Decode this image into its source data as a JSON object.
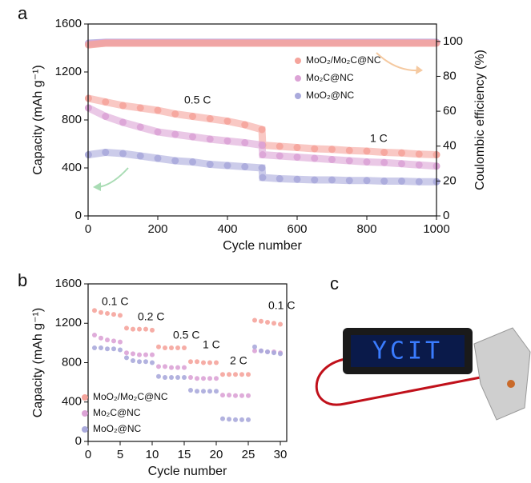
{
  "chart_data": [
    {
      "type": "scatter",
      "panel": "a",
      "x_label": "Cycle number",
      "y_label": "Capacity (mAh g⁻¹)",
      "y2_label": "Coulombic efficiency (%)",
      "annotations": [
        "0.5 C",
        "1 C"
      ],
      "x": [
        1,
        50,
        100,
        150,
        200,
        250,
        300,
        350,
        400,
        450,
        499,
        501,
        550,
        600,
        650,
        700,
        750,
        800,
        850,
        900,
        950,
        1000
      ],
      "xlim": [
        0,
        1000
      ],
      "xticks": [
        0,
        200,
        400,
        600,
        800,
        1000
      ],
      "ylim": [
        0,
        1600
      ],
      "yticks": [
        0,
        400,
        800,
        1200,
        1600
      ],
      "y2lim": [
        0,
        110
      ],
      "y2ticks": [
        0,
        20,
        40,
        60,
        80,
        100
      ],
      "series": [
        {
          "name": "MoO₂/Mo₂C@NC",
          "color": "#f5a49c",
          "values": [
            980,
            950,
            920,
            900,
            880,
            850,
            830,
            810,
            790,
            760,
            720,
            590,
            580,
            570,
            560,
            555,
            545,
            540,
            530,
            525,
            515,
            510
          ]
        },
        {
          "name": "Mo₂C@NC",
          "color": "#dca3d6",
          "values": [
            900,
            830,
            780,
            740,
            700,
            680,
            660,
            640,
            625,
            610,
            590,
            510,
            500,
            490,
            480,
            470,
            460,
            450,
            445,
            435,
            425,
            415
          ]
        },
        {
          "name": "MoO₂@NC",
          "color": "#aaaadc",
          "values": [
            510,
            530,
            520,
            500,
            480,
            460,
            450,
            430,
            420,
            410,
            400,
            320,
            310,
            305,
            300,
            300,
            295,
            295,
            290,
            290,
            285,
            285
          ]
        },
        {
          "axis": "y2",
          "color": "#aaaadc",
          "values": [
            99,
            99.5,
            99.5,
            99.5,
            99.5,
            99.5,
            99.5,
            99.5,
            99.5,
            99.5,
            99.5,
            99.5,
            99.5,
            99.5,
            99.5,
            99.5,
            99.5,
            99.5,
            99.5,
            99.5,
            99.5,
            99.5
          ]
        },
        {
          "axis": "y2",
          "color": "#dca3d6",
          "values": [
            98.5,
            99.3,
            99.3,
            99.3,
            99.3,
            99.3,
            99.3,
            99.3,
            99.3,
            99.3,
            99.3,
            99.3,
            99.3,
            99.3,
            99.3,
            99.3,
            99.3,
            99.3,
            99.3,
            99.3,
            99.3,
            99.3
          ]
        },
        {
          "axis": "y2",
          "color": "#f5a49c",
          "values": [
            98,
            99,
            99,
            99,
            99,
            99,
            99,
            99,
            99,
            99,
            99,
            99,
            99,
            99,
            99,
            99,
            99,
            99,
            99,
            99,
            99,
            99
          ]
        }
      ]
    },
    {
      "type": "scatter",
      "panel": "b",
      "x_label": "Cycle number",
      "y_label": "Capacity (mAh g⁻¹)",
      "annotations": [
        "0.1 C",
        "0.2 C",
        "0.5 C",
        "1 C",
        "2 C",
        "0.1 C"
      ],
      "x": [
        1,
        2,
        3,
        4,
        5,
        6,
        7,
        8,
        9,
        10,
        11,
        12,
        13,
        14,
        15,
        16,
        17,
        18,
        19,
        20,
        21,
        22,
        23,
        24,
        25,
        26,
        27,
        28,
        29,
        30
      ],
      "xlim": [
        0,
        31
      ],
      "xticks": [
        0,
        5,
        10,
        15,
        20,
        25,
        30
      ],
      "ylim": [
        0,
        1600
      ],
      "yticks": [
        0,
        400,
        800,
        1200,
        1600
      ],
      "series": [
        {
          "name": "MoO₂/Mo₂C@NC",
          "color": "#f5a49c",
          "values": [
            1330,
            1310,
            1300,
            1290,
            1280,
            1150,
            1140,
            1140,
            1140,
            1130,
            960,
            950,
            950,
            950,
            950,
            810,
            810,
            800,
            800,
            800,
            680,
            680,
            680,
            680,
            680,
            1230,
            1220,
            1210,
            1200,
            1190
          ]
        },
        {
          "name": "Mo₂C@NC",
          "color": "#dca3d6",
          "values": [
            1080,
            1050,
            1030,
            1020,
            1010,
            900,
            890,
            880,
            880,
            880,
            760,
            760,
            750,
            750,
            750,
            650,
            640,
            640,
            640,
            640,
            470,
            470,
            465,
            465,
            465,
            920,
            920,
            910,
            910,
            900
          ]
        },
        {
          "name": "MoO₂@NC",
          "color": "#aaaadc",
          "values": [
            950,
            950,
            940,
            940,
            930,
            850,
            820,
            810,
            810,
            800,
            660,
            650,
            650,
            650,
            650,
            520,
            510,
            510,
            510,
            510,
            230,
            225,
            220,
            220,
            220,
            960,
            920,
            910,
            900,
            890
          ]
        }
      ]
    }
  ],
  "photo": {
    "panel": "c",
    "led_text": "YCIT"
  }
}
